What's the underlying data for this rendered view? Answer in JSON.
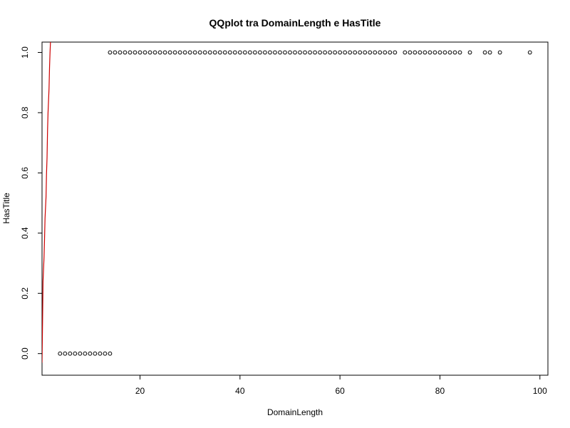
{
  "chart_data": {
    "type": "scatter",
    "title": "QQplot tra DomainLength e HasTitle",
    "xlabel": "DomainLength",
    "ylabel": "HasTitle",
    "xlim": [
      0.4,
      101.6
    ],
    "ylim": [
      -0.0718,
      1.0344
    ],
    "x_ticks": [
      20,
      40,
      60,
      80,
      100
    ],
    "y_ticks": [
      0.0,
      0.2,
      0.4,
      0.6,
      0.8,
      1.0
    ],
    "x_tick_labels": [
      "20",
      "40",
      "60",
      "80",
      "100"
    ],
    "y_tick_labels": [
      "0.0",
      "0.2",
      "0.4",
      "0.6",
      "0.8",
      "1.0"
    ],
    "grid": false,
    "series": [
      {
        "type": "scatter",
        "marker": "open-circle",
        "color": "#000000",
        "points": [
          [
            4,
            0
          ],
          [
            5,
            0
          ],
          [
            6,
            0
          ],
          [
            7,
            0
          ],
          [
            8,
            0
          ],
          [
            9,
            0
          ],
          [
            10,
            0
          ],
          [
            11,
            0
          ],
          [
            12,
            0
          ],
          [
            13,
            0
          ],
          [
            14,
            0
          ],
          [
            14,
            1
          ],
          [
            15,
            1
          ],
          [
            16,
            1
          ],
          [
            17,
            1
          ],
          [
            18,
            1
          ],
          [
            19,
            1
          ],
          [
            20,
            1
          ],
          [
            21,
            1
          ],
          [
            22,
            1
          ],
          [
            23,
            1
          ],
          [
            24,
            1
          ],
          [
            25,
            1
          ],
          [
            26,
            1
          ],
          [
            27,
            1
          ],
          [
            28,
            1
          ],
          [
            29,
            1
          ],
          [
            30,
            1
          ],
          [
            31,
            1
          ],
          [
            32,
            1
          ],
          [
            33,
            1
          ],
          [
            34,
            1
          ],
          [
            35,
            1
          ],
          [
            36,
            1
          ],
          [
            37,
            1
          ],
          [
            38,
            1
          ],
          [
            39,
            1
          ],
          [
            40,
            1
          ],
          [
            41,
            1
          ],
          [
            42,
            1
          ],
          [
            43,
            1
          ],
          [
            44,
            1
          ],
          [
            45,
            1
          ],
          [
            46,
            1
          ],
          [
            47,
            1
          ],
          [
            48,
            1
          ],
          [
            49,
            1
          ],
          [
            50,
            1
          ],
          [
            51,
            1
          ],
          [
            52,
            1
          ],
          [
            53,
            1
          ],
          [
            54,
            1
          ],
          [
            55,
            1
          ],
          [
            56,
            1
          ],
          [
            57,
            1
          ],
          [
            58,
            1
          ],
          [
            59,
            1
          ],
          [
            60,
            1
          ],
          [
            61,
            1
          ],
          [
            62,
            1
          ],
          [
            63,
            1
          ],
          [
            64,
            1
          ],
          [
            65,
            1
          ],
          [
            66,
            1
          ],
          [
            67,
            1
          ],
          [
            68,
            1
          ],
          [
            69,
            1
          ],
          [
            70,
            1
          ],
          [
            71,
            1
          ],
          [
            73,
            1
          ],
          [
            74,
            1
          ],
          [
            75,
            1
          ],
          [
            76,
            1
          ],
          [
            77,
            1
          ],
          [
            78,
            1
          ],
          [
            79,
            1
          ],
          [
            80,
            1
          ],
          [
            81,
            1
          ],
          [
            82,
            1
          ],
          [
            83,
            1
          ],
          [
            84,
            1
          ],
          [
            86,
            1
          ],
          [
            89,
            1
          ],
          [
            90,
            1
          ],
          [
            92,
            1
          ],
          [
            98,
            1
          ]
        ]
      },
      {
        "type": "line",
        "color": "#cc0000",
        "points": [
          [
            0.4,
            -0.03
          ],
          [
            0.5,
            0.1
          ],
          [
            0.6,
            0.24
          ],
          [
            0.8,
            0.32
          ],
          [
            0.9,
            0.38
          ],
          [
            1.0,
            0.45
          ],
          [
            1.2,
            0.52
          ],
          [
            1.3,
            0.6
          ],
          [
            1.4,
            0.65
          ],
          [
            1.5,
            0.74
          ],
          [
            1.6,
            0.8
          ],
          [
            1.8,
            0.88
          ],
          [
            1.9,
            0.95
          ],
          [
            2.0,
            1.0
          ],
          [
            2.1,
            1.04
          ]
        ]
      }
    ]
  }
}
